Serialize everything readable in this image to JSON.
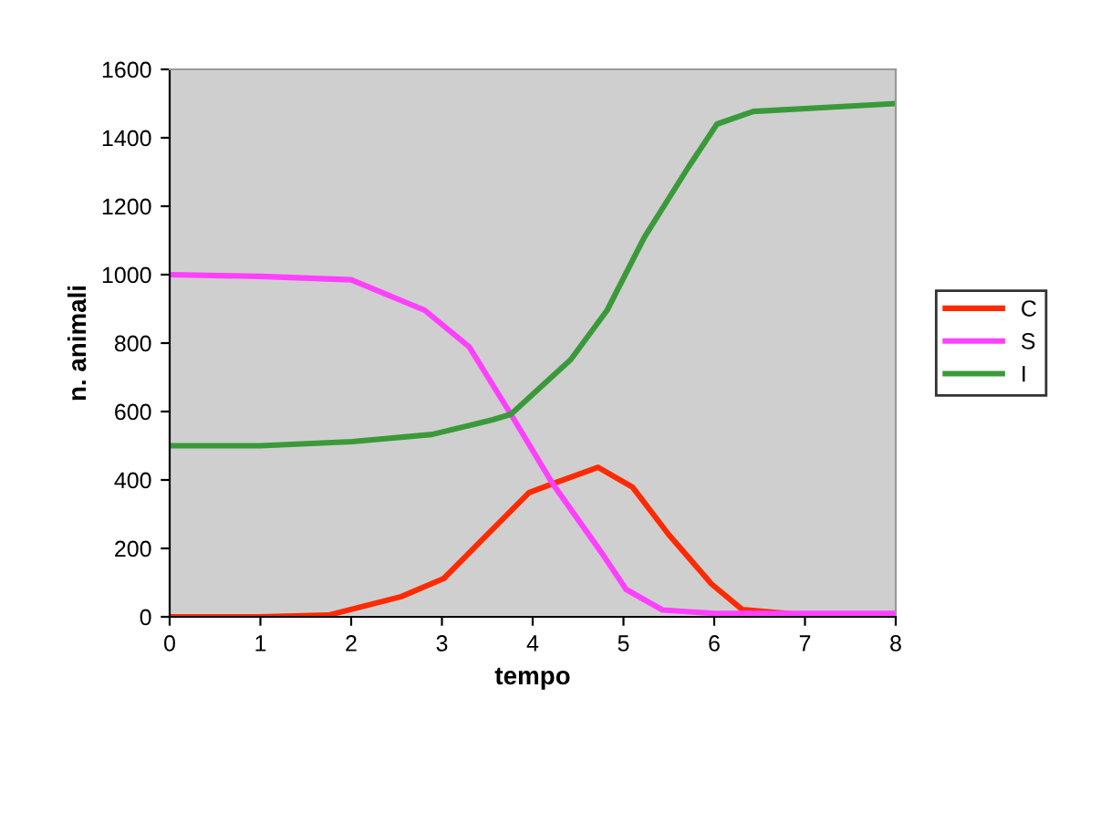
{
  "chart_data": {
    "type": "line",
    "xlabel": "tempo",
    "ylabel": "n. animali",
    "xlim": [
      0,
      8
    ],
    "xticks": [
      0,
      1,
      2,
      3,
      4,
      5,
      6,
      7,
      8
    ],
    "ylim": [
      0,
      1600
    ],
    "yticks": [
      0,
      200,
      400,
      600,
      800,
      1000,
      1200,
      1400,
      1600
    ],
    "grid": false,
    "legend": "right",
    "marker": "none",
    "line_style": "solid",
    "series": [
      {
        "name": "C",
        "color": "#ff2a00",
        "x": [
          0,
          1,
          1.75,
          2.55,
          3.02,
          3.42,
          3.96,
          4.22,
          4.72,
          5.1,
          5.5,
          5.97,
          6.31,
          7,
          8
        ],
        "values": [
          0,
          0,
          5,
          59,
          112,
          219,
          363,
          389,
          437,
          379,
          240,
          96,
          21,
          5,
          5
        ]
      },
      {
        "name": "S",
        "color": "#ff40ff",
        "x": [
          0,
          1,
          2,
          2.81,
          3.3,
          3.76,
          4.22,
          4.76,
          5.03,
          5.43,
          6,
          7,
          8
        ],
        "values": [
          1000,
          995,
          985,
          896,
          789,
          592,
          389,
          187,
          80,
          20,
          10,
          10,
          10
        ]
      },
      {
        "name": "I",
        "color": "#3a9a3a",
        "x": [
          0,
          1,
          2.01,
          2.89,
          3.56,
          3.76,
          4.42,
          4.82,
          5.23,
          5.71,
          6.03,
          6.43,
          7.32,
          8
        ],
        "values": [
          500,
          500,
          512,
          533,
          576,
          592,
          752,
          896,
          1109,
          1312,
          1440,
          1477,
          1490,
          1500
        ]
      }
    ]
  }
}
